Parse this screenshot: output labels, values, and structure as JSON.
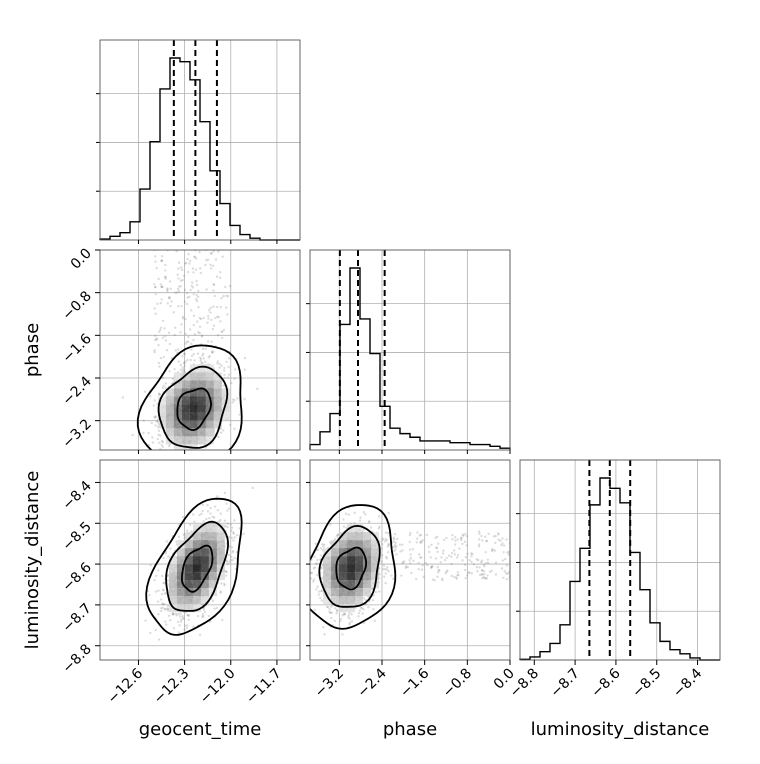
{
  "chart_data": {
    "type": "corner",
    "parameters": [
      "geocent_time",
      "phase",
      "luminosity_distance"
    ],
    "ranges": {
      "geocent_time": [
        -12.85,
        -11.55
      ],
      "phase": [
        -3.75,
        0.0
      ],
      "luminosity_distance": [
        -8.835,
        -8.345
      ]
    },
    "ticks": {
      "geocent_time": [
        -12.6,
        -12.3,
        -12.0,
        -11.7
      ],
      "phase": [
        -3.2,
        -2.4,
        -1.6,
        -0.8,
        0.0
      ],
      "luminosity_distance": [
        -8.8,
        -8.7,
        -8.6,
        -8.5,
        -8.4
      ]
    },
    "tick_labels": {
      "geocent_time": [
        "−12.6",
        "−12.3",
        "−12.0",
        "−11.7"
      ],
      "phase": [
        "−3.2",
        "−2.4",
        "−1.6",
        "−0.8",
        "0.0"
      ],
      "luminosity_distance": [
        "−8.8",
        "−8.7",
        "−8.6",
        "−8.5",
        "−8.4"
      ]
    },
    "labels": {
      "geocent_time": "geocent_time",
      "phase": "phase",
      "luminosity_distance": "luminosity_distance"
    },
    "quantiles": {
      "geocent_time": [
        -12.37,
        -12.23,
        -12.09
      ],
      "phase": [
        -3.19,
        -2.85,
        -2.35
      ],
      "luminosity_distance": [
        -8.665,
        -8.615,
        -8.565
      ]
    },
    "histograms": {
      "geocent_time": {
        "edges": [
          -12.85,
          -12.785,
          -12.72,
          -12.655,
          -12.59,
          -12.525,
          -12.46,
          -12.395,
          -12.33,
          -12.265,
          -12.2,
          -12.135,
          -12.07,
          -12.005,
          -11.94,
          -11.875,
          -11.81,
          -11.745,
          -11.68,
          -11.615,
          -11.55
        ],
        "counts": [
          0.5,
          2,
          4,
          10,
          28,
          54,
          83,
          100,
          98,
          88,
          65,
          38,
          20,
          8,
          3,
          1,
          0,
          0,
          0,
          0
        ]
      },
      "phase": {
        "edges": [
          -3.75,
          -3.5625,
          -3.375,
          -3.1875,
          -3.0,
          -2.8125,
          -2.625,
          -2.4375,
          -2.25,
          -2.0625,
          -1.875,
          -1.6875,
          -1.5,
          -1.3125,
          -1.125,
          -0.9375,
          -0.75,
          -0.5625,
          -0.375,
          -0.1875,
          0.0
        ],
        "counts": [
          3,
          10,
          20,
          69,
          100,
          72,
          53,
          24,
          12,
          9,
          7,
          5,
          5,
          5,
          4,
          4,
          3,
          3,
          2,
          1
        ]
      },
      "luminosity_distance": {
        "edges": [
          -8.835,
          -8.8105,
          -8.786,
          -8.7615,
          -8.737,
          -8.7125,
          -8.688,
          -8.6635,
          -8.639,
          -8.6145,
          -8.59,
          -8.5655,
          -8.541,
          -8.5165,
          -8.492,
          -8.4675,
          -8.443,
          -8.4185,
          -8.394,
          -8.3695,
          -8.345
        ],
        "counts": [
          0.3,
          1.5,
          4,
          8,
          17,
          38,
          54,
          75,
          88,
          83,
          76,
          52,
          34,
          18,
          9,
          5,
          3,
          1,
          0,
          0
        ]
      }
    },
    "pairs": [
      {
        "x": "geocent_time",
        "y": "phase",
        "peak": [
          -12.24,
          -2.97
        ],
        "sigma": [
          0.11,
          0.38
        ],
        "rho": 0.2,
        "outlier_cloud": [
          -12.25,
          -1.1
        ]
      },
      {
        "x": "geocent_time",
        "y": "luminosity_distance",
        "peak": [
          -12.22,
          -8.61
        ],
        "sigma": [
          0.1,
          0.055
        ],
        "rho": 0.45
      },
      {
        "x": "phase",
        "y": "luminosity_distance",
        "peak": [
          -2.98,
          -8.61
        ],
        "sigma": [
          0.28,
          0.05
        ],
        "rho": 0.2,
        "outlier_cloud": [
          -1.1,
          -8.58
        ]
      }
    ],
    "levels": [
      0.39,
      0.86,
      0.99
    ],
    "grid": true,
    "colors": {
      "ink": "#000000",
      "points": "#808080",
      "density": "#000000"
    }
  }
}
